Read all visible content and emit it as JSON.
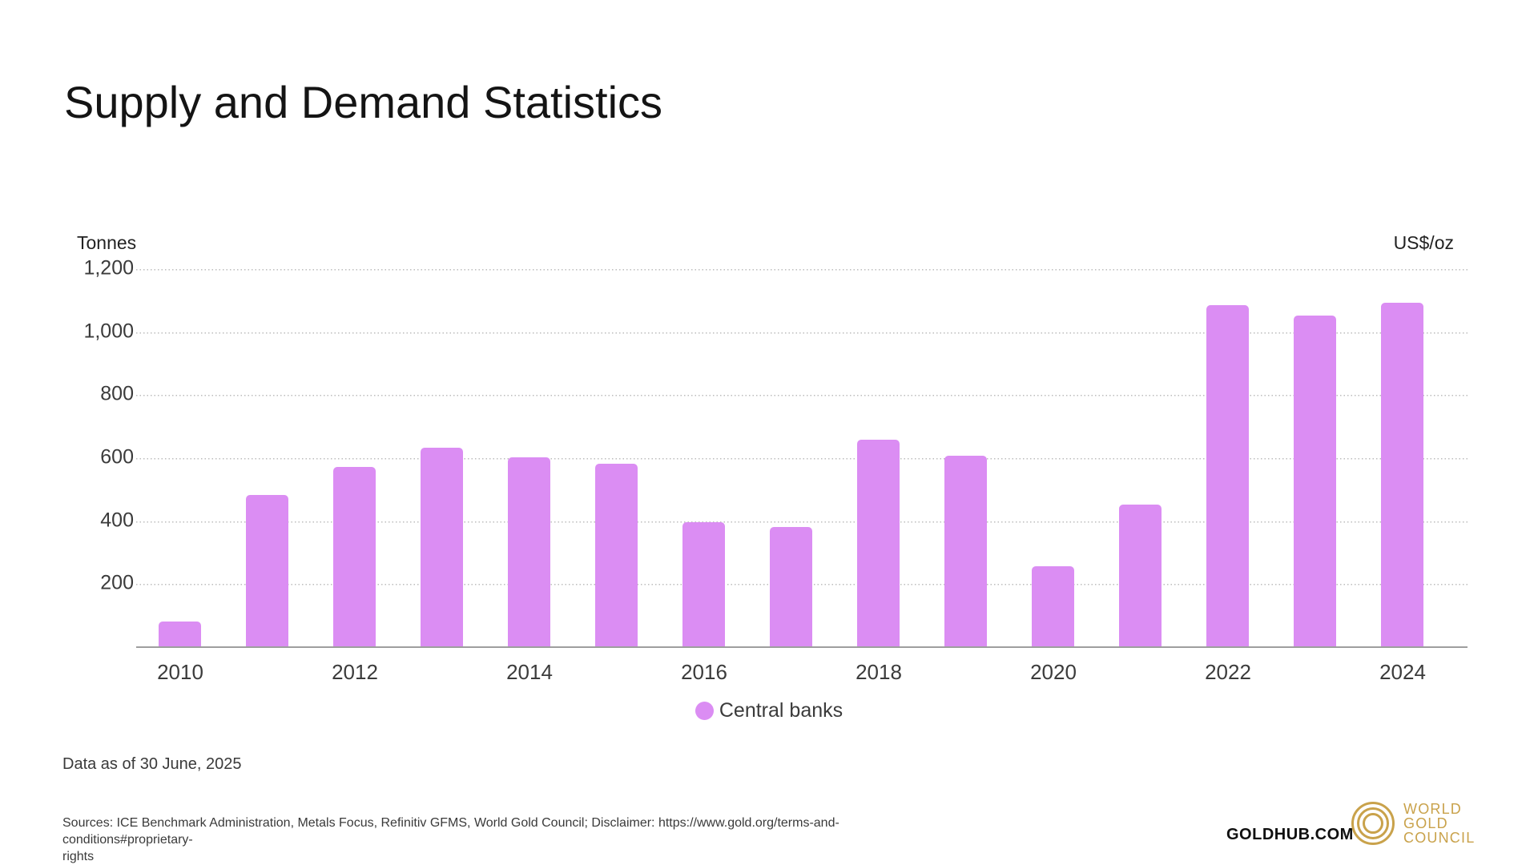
{
  "title": "Supply and Demand Statistics",
  "axis_titles": {
    "left": "Tonnes",
    "right": "US$/oz"
  },
  "legend": {
    "label": "Central banks"
  },
  "colors": {
    "bar": "#db8df3",
    "legend_marker": "#db8df3",
    "gridline": "#bdbdbd",
    "axis_line": "#9e9e9e",
    "gold_brand": "#c9a24b"
  },
  "chart_data": {
    "type": "bar",
    "title": "Supply and Demand Statistics",
    "categories": [
      "2010",
      "2011",
      "2012",
      "2013",
      "2014",
      "2015",
      "2016",
      "2017",
      "2018",
      "2019",
      "2020",
      "2021",
      "2022",
      "2023",
      "2024"
    ],
    "series": [
      {
        "name": "Central banks",
        "values": [
          79,
          481,
          569,
          630,
          601,
          580,
          395,
          379,
          656,
          605,
          255,
          450,
          1082,
          1051,
          1090
        ]
      }
    ],
    "ylabel_left": "Tonnes",
    "ylabel_right": "US$/oz",
    "ylim": [
      0,
      1200
    ],
    "yticks": [
      200,
      400,
      600,
      800,
      1000,
      1200
    ],
    "ytick_labels": [
      "200",
      "400",
      "600",
      "800",
      "1,000",
      "1,200"
    ],
    "xtick_labels_shown": [
      "2010",
      "2012",
      "2014",
      "2016",
      "2018",
      "2020",
      "2022",
      "2024"
    ],
    "grid": "horizontal-dotted",
    "legend_position": "bottom-center",
    "bar_color": "#db8df3"
  },
  "footnotes": {
    "data_as_of": "Data as of 30 June, 2025",
    "sources_line1": "Sources: ICE Benchmark Administration, Metals Focus, Refinitiv GFMS, World Gold Council; Disclaimer: https://www.gold.org/terms-and-conditions#proprietary-",
    "sources_line2": "rights"
  },
  "branding": {
    "goldhub": "GOLDHUB.COM",
    "logo_line1": "WORLD",
    "logo_line2": "GOLD",
    "logo_line3": "COUNCIL"
  }
}
